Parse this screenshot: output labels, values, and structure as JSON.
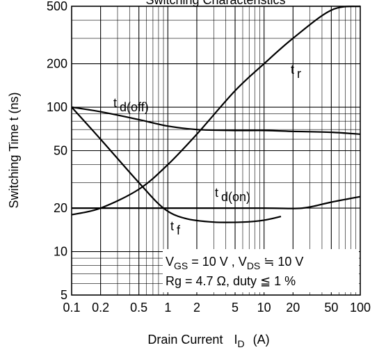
{
  "chart_data": {
    "type": "line",
    "title": "Switching Characteristics",
    "xlabel": {
      "main": "Drain Current",
      "symbol": "I",
      "sub": "D",
      "unit": "(A)"
    },
    "ylabel": "Switching Time  t  (ns)",
    "x_scale": "log",
    "y_scale": "log",
    "xlim": [
      0.1,
      100
    ],
    "ylim": [
      5,
      500
    ],
    "x_ticks": [
      {
        "v": 0.1,
        "label": "0.1"
      },
      {
        "v": 0.2,
        "label": "0.2"
      },
      {
        "v": 0.5,
        "label": "0.5"
      },
      {
        "v": 1,
        "label": "1"
      },
      {
        "v": 2,
        "label": "2"
      },
      {
        "v": 5,
        "label": "5"
      },
      {
        "v": 10,
        "label": "10"
      },
      {
        "v": 20,
        "label": "20"
      },
      {
        "v": 50,
        "label": "50"
      },
      {
        "v": 100,
        "label": "100"
      }
    ],
    "y_ticks": [
      {
        "v": 5,
        "label": "5"
      },
      {
        "v": 10,
        "label": "10"
      },
      {
        "v": 20,
        "label": "20"
      },
      {
        "v": 50,
        "label": "50"
      },
      {
        "v": 100,
        "label": "100"
      },
      {
        "v": 200,
        "label": "200"
      },
      {
        "v": 500,
        "label": "500"
      }
    ],
    "grid": true,
    "series": [
      {
        "name": "t d(off)",
        "sym": "t",
        "sub": "d(off)",
        "x": [
          0.1,
          0.2,
          0.5,
          1,
          2,
          5,
          10,
          20,
          50,
          100
        ],
        "y": [
          100,
          93,
          82,
          74,
          70,
          69,
          69,
          68,
          67,
          65
        ]
      },
      {
        "name": "t r",
        "sym": "t",
        "sub": "r",
        "x": [
          0.1,
          0.2,
          0.5,
          1,
          2,
          5,
          10,
          20,
          50,
          100
        ],
        "y": [
          18,
          20,
          27,
          40,
          65,
          130,
          200,
          300,
          470,
          500
        ]
      },
      {
        "name": "t d(on)",
        "sym": "t",
        "sub": "d(on)",
        "x": [
          0.1,
          1,
          10,
          25,
          50,
          100
        ],
        "y": [
          20,
          20,
          20,
          20,
          22,
          24
        ]
      },
      {
        "name": "t f",
        "sym": "t",
        "sub": "f",
        "x": [
          0.1,
          0.2,
          0.5,
          0.9,
          1.5,
          3,
          6,
          10,
          15
        ],
        "y": [
          100,
          60,
          30,
          20,
          17,
          16,
          16,
          16.5,
          17.5
        ]
      }
    ],
    "annotations": [
      {
        "id": "cond1",
        "parts": [
          "V",
          "GS",
          " = 10 V , V",
          "DS",
          " ≒ 10 V"
        ]
      },
      {
        "id": "cond2",
        "parts": [
          "Rg = 4.7 Ω, duty ≦ 1 %"
        ]
      }
    ]
  }
}
